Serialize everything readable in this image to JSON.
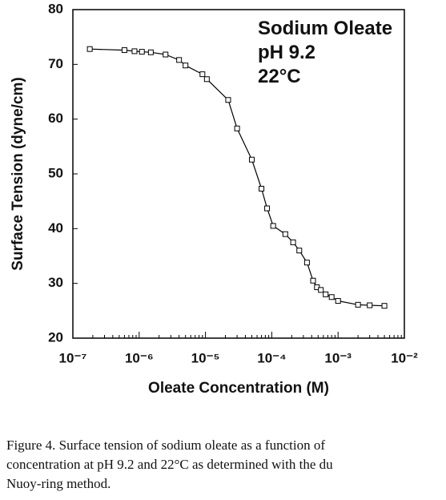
{
  "chart_data": {
    "type": "line",
    "annotations": [
      "Sodium Oleate",
      "pH 9.2",
      "22°C"
    ],
    "xlabel": "Oleate Concentration (M)",
    "ylabel": "Surface Tension (dyne/cm)",
    "xscale": "log",
    "x": [
      1.8e-07,
      6e-07,
      8.5e-07,
      1.1e-06,
      1.5e-06,
      2.5e-06,
      4e-06,
      5e-06,
      9e-06,
      1.05e-05,
      2.2e-05,
      3e-05,
      5e-05,
      7e-05,
      8.5e-05,
      0.000105,
      0.00016,
      0.00021,
      0.00026,
      0.00034,
      0.00042,
      0.00048,
      0.00055,
      0.00065,
      0.0008,
      0.001,
      0.002,
      0.003,
      0.005
    ],
    "values": [
      72.8,
      72.6,
      72.4,
      72.3,
      72.2,
      71.8,
      70.8,
      69.8,
      68.2,
      67.3,
      63.5,
      58.3,
      52.6,
      47.3,
      43.7,
      40.5,
      39.0,
      37.5,
      36.0,
      33.8,
      30.5,
      29.3,
      28.8,
      28.0,
      27.5,
      26.8,
      26.1,
      26.0,
      25.9
    ],
    "color": "#000000",
    "xlim": [
      1e-07,
      0.01
    ],
    "xticks": [
      {
        "value": 1e-07,
        "label": "10⁻⁷"
      },
      {
        "value": 1e-06,
        "label": "10⁻⁶"
      },
      {
        "value": 1e-05,
        "label": "10⁻⁵"
      },
      {
        "value": 0.0001,
        "label": "10⁻⁴"
      },
      {
        "value": 0.001,
        "label": "10⁻³"
      },
      {
        "value": 0.01,
        "label": "10⁻²"
      }
    ],
    "ylim": [
      20,
      80
    ],
    "yticks": [
      20,
      30,
      40,
      50,
      60,
      70,
      80
    ],
    "caption": [
      "Figure 4. Surface tension of sodium oleate as a function of",
      "concentration at pH 9.2 and 22°C as determined with the du",
      "Nuoy-ring method."
    ]
  }
}
